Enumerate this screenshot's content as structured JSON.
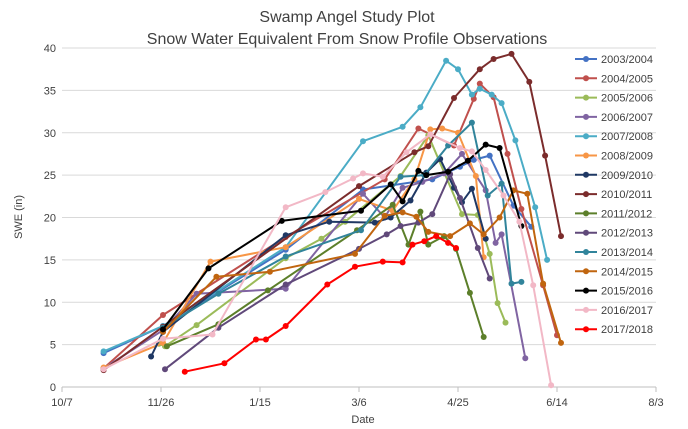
{
  "chart_data": {
    "type": "line",
    "title": "Swamp Angel Study Plot",
    "subtitle": "Snow Water Equivalent From Snow Profile Observations",
    "xlabel": "Date",
    "ylabel": "SWE (in)",
    "x_unit": "days since Oct 7",
    "xlim": [
      0,
      300
    ],
    "ylim": [
      0,
      40
    ],
    "grid": "horizontal",
    "legend_position": "right",
    "x_ticks": [
      {
        "value": 0,
        "label": "10/7"
      },
      {
        "value": 50,
        "label": "11/26"
      },
      {
        "value": 100,
        "label": "1/15"
      },
      {
        "value": 150,
        "label": "3/6"
      },
      {
        "value": 200,
        "label": "4/25"
      },
      {
        "value": 250,
        "label": "6/14"
      },
      {
        "value": 300,
        "label": "8/3"
      }
    ],
    "y_ticks": [
      0,
      5,
      10,
      15,
      20,
      25,
      30,
      35,
      40
    ],
    "series": [
      {
        "name": "2003/2004",
        "color": "#4472C4",
        "x": [
          21,
          51,
          113,
          152,
          187,
          201,
          208,
          216,
          228,
          237
        ],
        "y": [
          4.0,
          7.2,
          16.2,
          23.3,
          24.5,
          26.0,
          26.8,
          27.3,
          21.4,
          18.9
        ]
      },
      {
        "name": "2004/2005",
        "color": "#C0504D",
        "x": [
          21,
          51,
          113,
          163,
          180,
          198,
          208,
          211,
          218,
          225,
          232,
          243,
          250
        ],
        "y": [
          2.2,
          8.5,
          17.7,
          24.5,
          30.5,
          28.5,
          34.0,
          35.8,
          34.2,
          27.5,
          21.0,
          12.0,
          6.1
        ]
      },
      {
        "name": "2005/2006",
        "color": "#9BBB59",
        "x": [
          49,
          52,
          68,
          113,
          131,
          143,
          171,
          185,
          202,
          210,
          216,
          220,
          224
        ],
        "y": [
          5.1,
          4.8,
          7.3,
          15.2,
          17.5,
          19.5,
          24.9,
          29.7,
          20.4,
          20.3,
          15.7,
          9.9,
          7.6
        ]
      },
      {
        "name": "2006/2007",
        "color": "#8064A2",
        "x": [
          21,
          51,
          68,
          113,
          152,
          163,
          172,
          182,
          193,
          202,
          214,
          219,
          222,
          234
        ],
        "y": [
          2.2,
          6.7,
          11.0,
          11.6,
          22.8,
          20.0,
          23.5,
          24.2,
          25.2,
          27.5,
          23.2,
          17.0,
          18.0,
          3.4
        ]
      },
      {
        "name": "2007/2008",
        "color": "#4BACC6",
        "x": [
          21,
          51,
          113,
          152,
          172,
          181,
          194,
          200,
          207,
          211,
          217,
          222,
          229,
          239,
          245
        ],
        "y": [
          4.2,
          7.2,
          16.5,
          29.0,
          30.7,
          33.0,
          38.5,
          37.5,
          34.5,
          35.2,
          34.5,
          33.5,
          29.1,
          21.2,
          15.0
        ]
      },
      {
        "name": "2008/2009",
        "color": "#F79646",
        "x": [
          21,
          51,
          75,
          113,
          150,
          167,
          178,
          186,
          192,
          200,
          209,
          213
        ],
        "y": [
          2.3,
          5.2,
          14.8,
          16.5,
          22.2,
          20.8,
          24.5,
          30.4,
          30.5,
          30.0,
          24.9,
          15.3
        ]
      },
      {
        "name": "2009/2010",
        "color": "#1F3864",
        "x": [
          45,
          51,
          113,
          135,
          158,
          166,
          176,
          184,
          191,
          198,
          202,
          207,
          214
        ],
        "y": [
          3.6,
          6.5,
          17.9,
          19.5,
          19.4,
          20.0,
          22.0,
          25.3,
          26.9,
          23.5,
          21.8,
          23.4,
          17.5
        ]
      },
      {
        "name": "2010/2011",
        "color": "#7B2C2C",
        "x": [
          21,
          51,
          150,
          178,
          185,
          198,
          211,
          218,
          227,
          236,
          244,
          252
        ],
        "y": [
          2.0,
          7.1,
          23.7,
          27.7,
          28.4,
          34.1,
          37.5,
          38.7,
          39.3,
          36.0,
          27.3,
          17.8
        ]
      },
      {
        "name": "2011/2012",
        "color": "#5C7F2A",
        "x": [
          53,
          79,
          104,
          149,
          167,
          175,
          181,
          185,
          193,
          199,
          206,
          213
        ],
        "y": [
          4.8,
          7.4,
          11.4,
          18.5,
          21.5,
          16.8,
          20.7,
          16.8,
          17.8,
          16.3,
          11.1,
          5.9
        ]
      },
      {
        "name": "2012/2013",
        "color": "#60497A",
        "x": [
          52,
          79,
          113,
          150,
          164,
          171,
          180,
          187,
          196,
          201,
          210,
          216
        ],
        "y": [
          2.1,
          7.0,
          12.1,
          16.3,
          18.0,
          19.0,
          19.4,
          20.4,
          25.1,
          22.3,
          16.4,
          12.8
        ]
      },
      {
        "name": "2013/2014",
        "color": "#31849B",
        "x": [
          51,
          79,
          113,
          151,
          171,
          183,
          195,
          207,
          215,
          222,
          227,
          232
        ],
        "y": [
          7.0,
          11.0,
          15.4,
          18.5,
          24.8,
          25.0,
          28.5,
          31.2,
          22.6,
          24.0,
          12.2,
          12.4
        ]
      },
      {
        "name": "2014/2015",
        "color": "#C0650F",
        "x": [
          51,
          78,
          105,
          148,
          163,
          172,
          179,
          185,
          196,
          206,
          213,
          221,
          228,
          235,
          243,
          252
        ],
        "y": [
          6.5,
          13.0,
          13.6,
          15.7,
          20.2,
          20.6,
          20.1,
          18.3,
          17.8,
          19.3,
          18.0,
          20.0,
          23.2,
          22.8,
          12.2,
          5.2
        ]
      },
      {
        "name": "2015/2016",
        "color": "#000000",
        "x": [
          51,
          74,
          111,
          151,
          166,
          172,
          180,
          184,
          195,
          205,
          214,
          221,
          232
        ],
        "y": [
          6.8,
          14.0,
          19.6,
          20.8,
          23.9,
          21.9,
          25.5,
          25.0,
          25.4,
          26.7,
          28.6,
          28.2,
          19.0
        ]
      },
      {
        "name": "2016/2017",
        "color": "#F2B8C6",
        "x": [
          21,
          51,
          76,
          113,
          133,
          147,
          152,
          162,
          174,
          186,
          201,
          207,
          214,
          223,
          231,
          238,
          247
        ],
        "y": [
          2.1,
          5.7,
          6.2,
          21.2,
          23.0,
          24.6,
          25.2,
          24.8,
          27.7,
          29.8,
          28.2,
          27.8,
          25.6,
          22.6,
          19.5,
          12.0,
          0.2
        ]
      },
      {
        "name": "2017/2018",
        "color": "#FF0000",
        "x": [
          62,
          82,
          98,
          103,
          113,
          134,
          148,
          162,
          172,
          177,
          183,
          189,
          195,
          199
        ],
        "y": [
          1.8,
          2.8,
          5.6,
          5.6,
          7.2,
          12.1,
          14.2,
          14.8,
          14.7,
          16.8,
          17.2,
          17.8,
          17.0,
          16.4
        ]
      }
    ]
  }
}
